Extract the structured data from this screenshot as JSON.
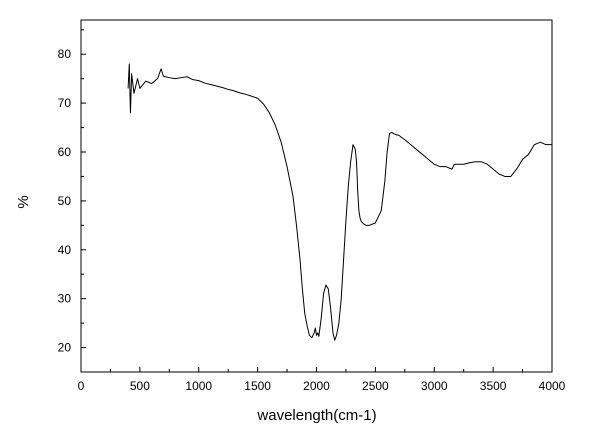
{
  "chart_data": {
    "type": "line",
    "title": "",
    "xlabel": "wavelength(cm-1)",
    "ylabel": "%",
    "xlim": [
      0,
      4000
    ],
    "ylim": [
      15,
      87
    ],
    "xticks": [
      0,
      500,
      1000,
      1500,
      2000,
      2500,
      3000,
      3500,
      4000
    ],
    "yticks": [
      20,
      30,
      40,
      50,
      60,
      70,
      80
    ],
    "grid": false,
    "legend": "none",
    "line_color": "#000000",
    "series": [
      {
        "x": [
          400,
          410,
          420,
          430,
          450,
          480,
          500,
          550,
          600,
          650,
          680,
          700,
          750,
          800,
          850,
          900,
          950,
          1000,
          1050,
          1100,
          1150,
          1200,
          1250,
          1300,
          1350,
          1400,
          1450,
          1500,
          1550,
          1600,
          1650,
          1700,
          1750,
          1800,
          1830,
          1860,
          1880,
          1900,
          1920,
          1940,
          1960,
          1980,
          1990,
          2000,
          2010,
          2020,
          2040,
          2060,
          2080,
          2100,
          2120,
          2140,
          2155,
          2170,
          2190,
          2210,
          2230,
          2250,
          2270,
          2290,
          2310,
          2330,
          2340,
          2350,
          2360,
          2370,
          2380,
          2400,
          2420,
          2450,
          2500,
          2550,
          2580,
          2600,
          2620,
          2640,
          2660,
          2680,
          2700,
          2750,
          2800,
          2850,
          2900,
          2950,
          3000,
          3050,
          3100,
          3150,
          3170,
          3200,
          3250,
          3300,
          3350,
          3400,
          3450,
          3500,
          3550,
          3600,
          3650,
          3700,
          3750,
          3800,
          3850,
          3900,
          3950,
          4000
        ],
        "y": [
          73,
          78,
          68,
          76,
          72,
          75,
          73,
          74.5,
          74,
          75,
          77,
          75.5,
          75.2,
          75,
          75.2,
          75.4,
          74.8,
          74.6,
          74.1,
          73.8,
          73.5,
          73.2,
          72.8,
          72.5,
          72.1,
          71.8,
          71.4,
          71,
          69.8,
          68,
          65.5,
          62,
          57,
          51,
          45,
          38,
          32,
          27,
          24.5,
          22.5,
          22,
          23,
          24,
          22.5,
          23,
          22.3,
          26,
          31,
          32.8,
          32,
          28,
          23,
          21.5,
          22.5,
          25,
          30,
          38,
          46,
          53,
          58,
          61.5,
          60.5,
          58,
          52,
          48,
          46.5,
          45.8,
          45.3,
          45,
          45,
          45.5,
          48,
          54,
          60,
          63.8,
          64,
          63.7,
          63.5,
          63.4,
          62.5,
          61.5,
          60.5,
          59.5,
          58.5,
          57.5,
          57,
          57,
          56.5,
          57.5,
          57.5,
          57.5,
          57.8,
          58,
          58,
          57.5,
          56.5,
          55.5,
          55,
          55,
          56.5,
          58.5,
          59.5,
          61.5,
          62,
          61.5,
          61.5
        ]
      }
    ]
  }
}
